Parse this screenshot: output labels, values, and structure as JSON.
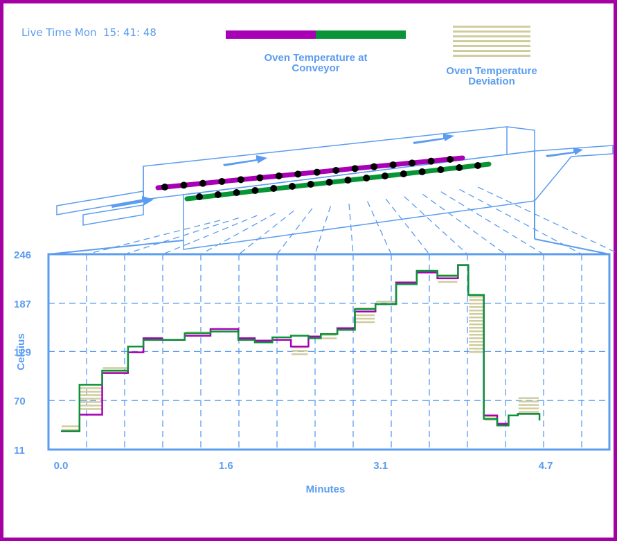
{
  "header": {
    "live_time": "Live Time Mon  15: 41: 48"
  },
  "legend": {
    "conveyor_label_line1": "Oven Temperature at",
    "conveyor_label_line2": "Conveyor",
    "deviation_label_line1": "Oven Temperature",
    "deviation_label_line2": "Deviation"
  },
  "colors": {
    "frame": "#a400a4",
    "magenta": "#a800b4",
    "green": "#0a9438",
    "blue": "#5a9cf0",
    "deviation": "#cfcc9e"
  },
  "chart_data": {
    "type": "line",
    "step": true,
    "xlabel": "Minutes",
    "ylabel": "Celsius",
    "xlim": [
      0.0,
      4.7
    ],
    "ylim": [
      11,
      246
    ],
    "x_ticks": [
      "0.0",
      "1.6",
      "3.1",
      "4.7"
    ],
    "y_ticks": [
      "246",
      "187",
      "129",
      "70",
      "11"
    ],
    "grid": true,
    "series": [
      {
        "name": "Oven Temperature at Conveyor",
        "colors": [
          "magenta",
          "green"
        ],
        "x": [
          0.0,
          0.18,
          0.4,
          0.65,
          0.8,
          0.98,
          1.2,
          1.45,
          1.72,
          1.88,
          2.05,
          2.23,
          2.4,
          2.52,
          2.68,
          2.85,
          3.05,
          3.25,
          3.45,
          3.65,
          3.85,
          3.95,
          4.1,
          4.23,
          4.34,
          4.43,
          4.64
        ],
        "values": [
          33,
          53,
          103,
          128,
          145,
          143,
          148,
          156,
          145,
          142,
          143,
          135,
          147,
          150,
          157,
          177,
          186,
          212,
          224,
          217,
          233,
          197,
          52,
          42,
          52,
          54,
          54
        ]
      },
      {
        "name": "Oven Temperature at Conveyor",
        "colors": [
          "green"
        ],
        "x": [
          0.0,
          0.18,
          0.4,
          0.65,
          0.8,
          0.98,
          1.2,
          1.45,
          1.72,
          1.88,
          2.05,
          2.23,
          2.4,
          2.52,
          2.68,
          2.85,
          3.05,
          3.25,
          3.45,
          3.65,
          3.85,
          3.95,
          4.1,
          4.23,
          4.34,
          4.43,
          4.64
        ],
        "values": [
          33,
          89,
          106,
          135,
          143,
          143,
          151,
          153,
          143,
          140,
          146,
          148,
          145,
          150,
          155,
          180,
          186,
          210,
          226,
          220,
          233,
          197,
          48,
          40,
          52,
          54,
          46
        ]
      }
    ],
    "deviation_bands": [
      {
        "x0": 0.0,
        "x1": 0.18,
        "y0": 34,
        "y1": 40
      },
      {
        "x0": 0.18,
        "x1": 0.4,
        "y0": 58,
        "y1": 90
      },
      {
        "x0": 0.4,
        "x1": 0.65,
        "y0": 103,
        "y1": 110
      },
      {
        "x0": 1.2,
        "x1": 1.45,
        "y0": 148,
        "y1": 153
      },
      {
        "x0": 1.72,
        "x1": 1.88,
        "y0": 142,
        "y1": 146
      },
      {
        "x0": 2.23,
        "x1": 2.4,
        "y0": 123,
        "y1": 135
      },
      {
        "x0": 2.52,
        "x1": 2.68,
        "y0": 143,
        "y1": 150
      },
      {
        "x0": 2.85,
        "x1": 3.05,
        "y0": 164,
        "y1": 182
      },
      {
        "x0": 3.05,
        "x1": 3.25,
        "y0": 186,
        "y1": 190
      },
      {
        "x0": 3.25,
        "x1": 3.45,
        "y0": 211,
        "y1": 213
      },
      {
        "x0": 3.65,
        "x1": 3.85,
        "y0": 211,
        "y1": 222
      },
      {
        "x0": 3.95,
        "x1": 4.1,
        "y0": 128,
        "y1": 196
      },
      {
        "x0": 4.1,
        "x1": 4.23,
        "y0": 45,
        "y1": 52
      },
      {
        "x0": 4.43,
        "x1": 4.64,
        "y0": 54,
        "y1": 74
      }
    ]
  }
}
